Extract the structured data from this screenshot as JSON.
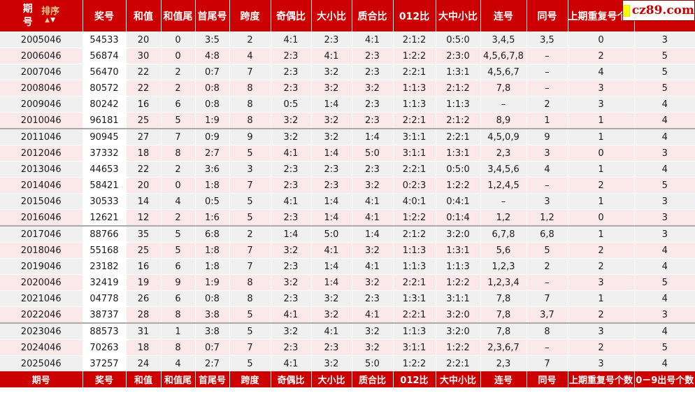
{
  "logo": {
    "text": "cz89.com"
  },
  "header": {
    "sort_label": "排序",
    "sort_up_icon": "▲",
    "sort_down_icon": "▼",
    "columns": [
      "期号",
      "奖号",
      "和值",
      "和值尾",
      "首尾号",
      "跨度",
      "奇偶比",
      "大小比",
      "质合比",
      "012比",
      "大中小比",
      "连号",
      "同号",
      "上期重复号个数",
      "0－9出号个数"
    ]
  },
  "column_keys": [
    "period",
    "prize",
    "sum",
    "sum-tail",
    "first-last",
    "span",
    "odd-even",
    "big-small",
    "prime-composite",
    "012-ratio",
    "big-mid-small",
    "consecutive",
    "same-number",
    "repeat-count",
    "digit-count"
  ],
  "rows": [
    [
      "2005046",
      "54533",
      "20",
      "0",
      "3:5",
      "2",
      "4:1",
      "2:3",
      "4:1",
      "2:1:2",
      "0:5:0",
      "3,4,5",
      "3,5",
      "0",
      "3"
    ],
    [
      "2006046",
      "56874",
      "30",
      "0",
      "4:8",
      "4",
      "2:3",
      "4:1",
      "2:3",
      "1:2:2",
      "2:3:0",
      "4,5,6,7,8",
      "–",
      "2",
      "5"
    ],
    [
      "2007046",
      "56470",
      "22",
      "2",
      "0:7",
      "7",
      "2:3",
      "3:2",
      "2:3",
      "2:2:1",
      "1:3:1",
      "4,5,6,7",
      "–",
      "4",
      "5"
    ],
    [
      "2008046",
      "80572",
      "22",
      "2",
      "0:8",
      "8",
      "2:3",
      "3:2",
      "3:2",
      "1:1:3",
      "2:1:2",
      "7,8",
      "–",
      "3",
      "5"
    ],
    [
      "2009046",
      "80242",
      "16",
      "6",
      "0:8",
      "8",
      "0:5",
      "1:4",
      "2:3",
      "1:1:3",
      "1:1:3",
      "–",
      "2",
      "3",
      "4"
    ],
    [
      "2010046",
      "96181",
      "25",
      "5",
      "1:9",
      "8",
      "3:2",
      "3:2",
      "2:3",
      "2:2:1",
      "2:1:2",
      "8,9",
      "1",
      "1",
      "4"
    ],
    [
      "2011046",
      "90945",
      "27",
      "7",
      "0:9",
      "9",
      "3:2",
      "3:2",
      "1:4",
      "3:1:1",
      "2:2:1",
      "4,5,0,9",
      "9",
      "1",
      "4"
    ],
    [
      "2012046",
      "37332",
      "18",
      "8",
      "2:7",
      "5",
      "4:1",
      "1:4",
      "5:0",
      "3:1:1",
      "1:3:1",
      "2,3",
      "3",
      "0",
      "3"
    ],
    [
      "2013046",
      "44653",
      "22",
      "2",
      "3:6",
      "3",
      "2:3",
      "2:3",
      "2:3",
      "2:2:1",
      "0:5:0",
      "3,4,5,6",
      "4",
      "1",
      "4"
    ],
    [
      "2014046",
      "58421",
      "20",
      "0",
      "1:8",
      "7",
      "2:3",
      "2:3",
      "3:2",
      "0:2:3",
      "1:2:2",
      "1,2,4,5",
      "–",
      "2",
      "5"
    ],
    [
      "2015046",
      "30533",
      "14",
      "4",
      "0:5",
      "5",
      "4:1",
      "1:4",
      "4:1",
      "4:0:1",
      "0:4:1",
      "–",
      "3",
      "1",
      "3"
    ],
    [
      "2016046",
      "12621",
      "12",
      "2",
      "1:6",
      "5",
      "2:3",
      "1:4",
      "4:1",
      "1:2:2",
      "0:1:4",
      "1,2",
      "1,2",
      "0",
      "3"
    ],
    [
      "2017046",
      "88766",
      "35",
      "5",
      "6:8",
      "2",
      "1:4",
      "5:0",
      "1:4",
      "2:1:2",
      "3:2:0",
      "6,7,8",
      "6,8",
      "1",
      "3"
    ],
    [
      "2018046",
      "55168",
      "25",
      "5",
      "1:8",
      "7",
      "3:2",
      "4:1",
      "3:2",
      "1:1:3",
      "1:3:1",
      "5,6",
      "5",
      "2",
      "4"
    ],
    [
      "2019046",
      "23182",
      "16",
      "6",
      "1:8",
      "7",
      "2:3",
      "1:4",
      "4:1",
      "1:1:3",
      "1:1:3",
      "1,2,3",
      "2",
      "2",
      "4"
    ],
    [
      "2020046",
      "32419",
      "19",
      "9",
      "1:9",
      "8",
      "3:2",
      "1:4",
      "3:2",
      "2:2:1",
      "1:2:2",
      "1,2,3,4",
      "–",
      "3",
      "5"
    ],
    [
      "2021046",
      "04778",
      "26",
      "6",
      "0:8",
      "8",
      "2:3",
      "3:2",
      "2:3",
      "1:3:1",
      "3:1:1",
      "7,8",
      "7",
      "1",
      "4"
    ],
    [
      "2022046",
      "38737",
      "28",
      "8",
      "3:8",
      "5",
      "4:1",
      "3:2",
      "4:1",
      "2:2:1",
      "3:2:0",
      "7,8",
      "3,7",
      "2",
      "3"
    ],
    [
      "2023046",
      "88573",
      "31",
      "1",
      "3:8",
      "5",
      "3:2",
      "4:1",
      "3:2",
      "1:1:3",
      "3:2:0",
      "7,8",
      "8",
      "3",
      "4"
    ],
    [
      "2024046",
      "70263",
      "18",
      "8",
      "0:7",
      "7",
      "2:3",
      "2:3",
      "3:2",
      "3:1:1",
      "1:2:2",
      "2,3,6,7",
      "–",
      "2",
      "5"
    ],
    [
      "2025046",
      "37257",
      "24",
      "4",
      "2:7",
      "5",
      "4:1",
      "3:2",
      "5:0",
      "1:2:2",
      "2:2:1",
      "2,3",
      "7",
      "3",
      "4"
    ]
  ],
  "footer": {
    "columns": [
      "期号",
      "奖号",
      "和值",
      "和值尾",
      "首尾号",
      "跨度",
      "奇偶比",
      "大小比",
      "质合比",
      "012比",
      "大中小比",
      "连号",
      "同号",
      "上期重复号个数",
      "0－9出号个数"
    ]
  },
  "colors": {
    "header_bg": "#cc0000",
    "row_gray_bg": "#f0f0f0",
    "row_pink_bg": "#fbe8e8",
    "prize_col_bg": "#ffffff",
    "header_text": "#ffffff",
    "body_text": "#1a1a1a",
    "sort_label_color": "#e6c48c",
    "logo_text_color": "#cc0000",
    "logo_square_color": "#ffff00",
    "group_separator": "#aaaaaa"
  }
}
